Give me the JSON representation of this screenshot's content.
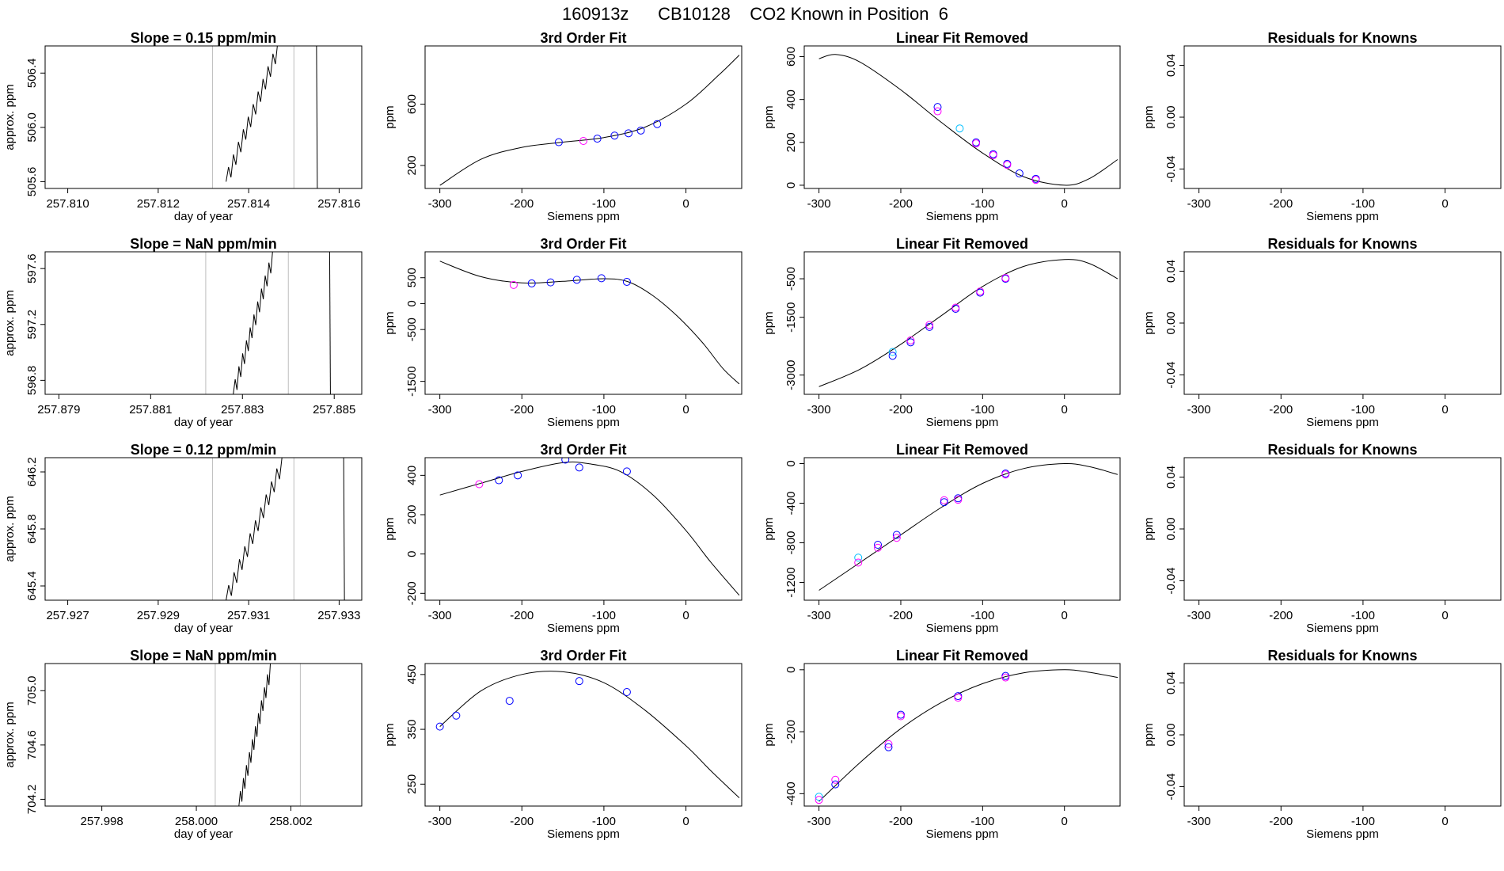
{
  "title": "160913z      CB10128    CO2 Known in Position  6",
  "colors": {
    "sample_blue": "#0000ff",
    "sample_magenta": "#ff00ff",
    "sample_cyan": "#00bfff",
    "guide_grey": "#bdbdbd",
    "ink": "#000000"
  },
  "chart_data": [
    {
      "row": 0,
      "type": "line",
      "title": "Slope =  0.15  ppm/min",
      "xlabel": "day of year",
      "ylabel": "approx. ppm",
      "xlim": [
        257.8095,
        257.8165
      ],
      "ylim": [
        505.55,
        506.6
      ],
      "xticks": [
        "257.810",
        "257.812",
        "257.814",
        "257.816"
      ],
      "xtick_values": [
        257.81,
        257.812,
        257.814,
        257.816
      ],
      "yticks": [
        "505.6",
        "506.0",
        "506.4"
      ],
      "ytick_values": [
        505.6,
        506.0,
        506.4
      ],
      "guide_lines": [
        257.8132,
        257.815
      ],
      "end_line": 257.8155,
      "trace": {
        "x_start": 257.8135,
        "x_end": 257.8147,
        "y_start": 505.6,
        "y_end": 506.62
      }
    },
    {
      "row": 0,
      "type": "scatter",
      "title": "3rd Order Fit",
      "xlabel": "Siemens ppm",
      "ylabel": "ppm",
      "xlim": [
        -318,
        68
      ],
      "ylim": [
        50,
        980
      ],
      "xticks": [
        "-300",
        "-200",
        "-100",
        "0"
      ],
      "xtick_values": [
        -300,
        -200,
        -100,
        0
      ],
      "yticks": [
        "200",
        "600"
      ],
      "ytick_values": [
        200,
        600
      ],
      "curve_points": [
        [
          -300,
          70
        ],
        [
          -250,
          240
        ],
        [
          -200,
          318
        ],
        [
          -150,
          352
        ],
        [
          -100,
          382
        ],
        [
          -50,
          450
        ],
        [
          0,
          600
        ],
        [
          40,
          790
        ],
        [
          65,
          920
        ]
      ],
      "points": [
        [
          -155,
          352,
          "blue"
        ],
        [
          -108,
          375,
          "blue"
        ],
        [
          -87,
          395,
          "blue"
        ],
        [
          -70,
          410,
          "blue"
        ],
        [
          -55,
          428,
          "blue"
        ],
        [
          -35,
          470,
          "blue"
        ],
        [
          -125,
          360,
          "magenta"
        ]
      ]
    },
    {
      "row": 0,
      "type": "scatter",
      "title": "Linear Fit Removed",
      "xlabel": "Siemens ppm",
      "ylabel": "ppm",
      "xlim": [
        -318,
        68
      ],
      "ylim": [
        -15,
        650
      ],
      "xticks": [
        "-300",
        "-200",
        "-100",
        "0"
      ],
      "xtick_values": [
        -300,
        -200,
        -100,
        0
      ],
      "yticks": [
        "0",
        "200",
        "400",
        "600"
      ],
      "ytick_values": [
        0,
        200,
        400,
        600
      ],
      "curve_points": [
        [
          -300,
          590
        ],
        [
          -280,
          610
        ],
        [
          -250,
          575
        ],
        [
          -200,
          445
        ],
        [
          -150,
          292
        ],
        [
          -100,
          150
        ],
        [
          -50,
          40
        ],
        [
          0,
          0
        ],
        [
          30,
          30
        ],
        [
          65,
          120
        ]
      ],
      "points": [
        [
          -155,
          365,
          "blue"
        ],
        [
          -155,
          345,
          "magenta"
        ],
        [
          -128,
          265,
          "cyan"
        ],
        [
          -108,
          200,
          "blue"
        ],
        [
          -108,
          195,
          "magenta"
        ],
        [
          -87,
          145,
          "blue"
        ],
        [
          -87,
          140,
          "magenta"
        ],
        [
          -70,
          100,
          "blue"
        ],
        [
          -70,
          95,
          "magenta"
        ],
        [
          -55,
          55,
          "blue"
        ],
        [
          -35,
          30,
          "blue"
        ],
        [
          -35,
          25,
          "magenta"
        ]
      ]
    },
    {
      "row": 0,
      "type": "scatter",
      "title": "Residuals for Knowns",
      "xlabel": "Siemens ppm",
      "ylabel": "ppm",
      "xlim": [
        -318,
        68
      ],
      "ylim": [
        -0.055,
        0.055
      ],
      "xticks": [
        "-300",
        "-200",
        "-100",
        "0"
      ],
      "xtick_values": [
        -300,
        -200,
        -100,
        0
      ],
      "yticks": [
        "-0.04",
        "0.00",
        "0.04"
      ],
      "ytick_values": [
        -0.04,
        0.0,
        0.04
      ],
      "curve_points": [],
      "points": []
    },
    {
      "row": 1,
      "type": "line",
      "title": "Slope =  NaN  ppm/min",
      "xlabel": "day of year",
      "ylabel": "approx. ppm",
      "xlim": [
        257.8787,
        257.8856
      ],
      "ylim": [
        596.7,
        597.72
      ],
      "xticks": [
        "257.879",
        "257.881",
        "257.883",
        "257.885"
      ],
      "xtick_values": [
        257.879,
        257.881,
        257.883,
        257.885
      ],
      "yticks": [
        "596.8",
        "597.2",
        "597.6"
      ],
      "ytick_values": [
        596.8,
        597.2,
        597.6
      ],
      "guide_lines": [
        257.8822,
        257.884
      ],
      "end_line": 257.8849,
      "trace": {
        "x_start": 257.8828,
        "x_end": 257.8837,
        "y_start": 596.7,
        "y_end": 597.72
      }
    },
    {
      "row": 1,
      "type": "scatter",
      "title": "3rd Order Fit",
      "xlabel": "Siemens ppm",
      "ylabel": "ppm",
      "xlim": [
        -318,
        68
      ],
      "ylim": [
        -1750,
        1000
      ],
      "xticks": [
        "-300",
        "-200",
        "-100",
        "0"
      ],
      "xtick_values": [
        -300,
        -200,
        -100,
        0
      ],
      "yticks": [
        "-1500",
        "-500",
        "0",
        "500"
      ],
      "ytick_values": [
        -1500,
        -500,
        0,
        500
      ],
      "curve_points": [
        [
          -300,
          820
        ],
        [
          -250,
          520
        ],
        [
          -200,
          400
        ],
        [
          -150,
          430
        ],
        [
          -100,
          480
        ],
        [
          -70,
          420
        ],
        [
          -40,
          150
        ],
        [
          -10,
          -250
        ],
        [
          20,
          -750
        ],
        [
          45,
          -1250
        ],
        [
          65,
          -1550
        ]
      ],
      "points": [
        [
          -210,
          360,
          "magenta"
        ],
        [
          -188,
          390,
          "blue"
        ],
        [
          -165,
          410,
          "blue"
        ],
        [
          -133,
          460,
          "blue"
        ],
        [
          -103,
          490,
          "blue"
        ],
        [
          -72,
          420,
          "blue"
        ]
      ]
    },
    {
      "row": 1,
      "type": "scatter",
      "title": "Linear Fit Removed",
      "xlabel": "Siemens ppm",
      "ylabel": "ppm",
      "xlim": [
        -318,
        68
      ],
      "ylim": [
        -3500,
        200
      ],
      "xticks": [
        "-300",
        "-200",
        "-100",
        "0"
      ],
      "xtick_values": [
        -300,
        -200,
        -100,
        0
      ],
      "yticks": [
        "-3000",
        "-1500",
        "-500"
      ],
      "ytick_values": [
        -3000,
        -1500,
        -500
      ],
      "curve_points": [
        [
          -300,
          -3300
        ],
        [
          -250,
          -2850
        ],
        [
          -200,
          -2200
        ],
        [
          -150,
          -1450
        ],
        [
          -100,
          -700
        ],
        [
          -50,
          -180
        ],
        [
          0,
          0
        ],
        [
          30,
          -100
        ],
        [
          65,
          -500
        ]
      ],
      "points": [
        [
          -210,
          -2400,
          "cyan"
        ],
        [
          -210,
          -2500,
          "blue"
        ],
        [
          -188,
          -2150,
          "blue"
        ],
        [
          -188,
          -2100,
          "magenta"
        ],
        [
          -165,
          -1750,
          "blue"
        ],
        [
          -165,
          -1700,
          "magenta"
        ],
        [
          -133,
          -1280,
          "blue"
        ],
        [
          -133,
          -1250,
          "magenta"
        ],
        [
          -103,
          -860,
          "blue"
        ],
        [
          -103,
          -830,
          "magenta"
        ],
        [
          -72,
          -500,
          "blue"
        ],
        [
          -72,
          -480,
          "magenta"
        ]
      ]
    },
    {
      "row": 1,
      "type": "scatter",
      "title": "Residuals for Knowns",
      "xlabel": "Siemens ppm",
      "ylabel": "ppm",
      "xlim": [
        -318,
        68
      ],
      "ylim": [
        -0.055,
        0.055
      ],
      "xticks": [
        "-300",
        "-200",
        "-100",
        "0"
      ],
      "xtick_values": [
        -300,
        -200,
        -100,
        0
      ],
      "yticks": [
        "-0.04",
        "0.00",
        "0.04"
      ],
      "ytick_values": [
        -0.04,
        0.0,
        0.04
      ],
      "curve_points": [],
      "points": []
    },
    {
      "row": 2,
      "type": "line",
      "title": "Slope =  0.12  ppm/min",
      "xlabel": "day of year",
      "ylabel": "approx. ppm",
      "xlim": [
        257.9265,
        257.9335
      ],
      "ylim": [
        645.3,
        646.3
      ],
      "xticks": [
        "257.927",
        "257.929",
        "257.931",
        "257.933"
      ],
      "xtick_values": [
        257.927,
        257.929,
        257.931,
        257.933
      ],
      "yticks": [
        "645.4",
        "645.8",
        "646.2"
      ],
      "ytick_values": [
        645.4,
        645.8,
        646.2
      ],
      "guide_lines": [
        257.9302,
        257.932
      ],
      "end_line": 257.9331,
      "trace": {
        "x_start": 257.9305,
        "x_end": 257.9318,
        "y_start": 645.3,
        "y_end": 646.3
      }
    },
    {
      "row": 2,
      "type": "scatter",
      "title": "3rd Order Fit",
      "xlabel": "Siemens ppm",
      "ylabel": "ppm",
      "xlim": [
        -318,
        68
      ],
      "ylim": [
        -235,
        490
      ],
      "xticks": [
        "-300",
        "-200",
        "-100",
        "0"
      ],
      "xtick_values": [
        -300,
        -200,
        -100,
        0
      ],
      "yticks": [
        "-200",
        "0",
        "200",
        "400"
      ],
      "ytick_values": [
        -200,
        0,
        200,
        400
      ],
      "curve_points": [
        [
          -300,
          300
        ],
        [
          -250,
          360
        ],
        [
          -200,
          420
        ],
        [
          -150,
          465
        ],
        [
          -120,
          460
        ],
        [
          -80,
          420
        ],
        [
          -40,
          300
        ],
        [
          0,
          120
        ],
        [
          30,
          -40
        ],
        [
          65,
          -210
        ]
      ],
      "points": [
        [
          -252,
          355,
          "magenta"
        ],
        [
          -228,
          375,
          "blue"
        ],
        [
          -205,
          400,
          "blue"
        ],
        [
          -147,
          480,
          "blue"
        ],
        [
          -130,
          440,
          "blue"
        ],
        [
          -72,
          420,
          "blue"
        ]
      ]
    },
    {
      "row": 2,
      "type": "scatter",
      "title": "Linear Fit Removed",
      "xlabel": "Siemens ppm",
      "ylabel": "ppm",
      "xlim": [
        -318,
        68
      ],
      "ylim": [
        -1380,
        60
      ],
      "xticks": [
        "-300",
        "-200",
        "-100",
        "0"
      ],
      "xtick_values": [
        -300,
        -200,
        -100,
        0
      ],
      "yticks": [
        "-1200",
        "-800",
        "-400",
        "0"
      ],
      "ytick_values": [
        -1200,
        -800,
        -400,
        0
      ],
      "curve_points": [
        [
          -300,
          -1280
        ],
        [
          -250,
          -1000
        ],
        [
          -200,
          -720
        ],
        [
          -150,
          -440
        ],
        [
          -100,
          -200
        ],
        [
          -50,
          -50
        ],
        [
          0,
          0
        ],
        [
          30,
          -30
        ],
        [
          65,
          -110
        ]
      ],
      "points": [
        [
          -252,
          -950,
          "cyan"
        ],
        [
          -252,
          -1000,
          "magenta"
        ],
        [
          -228,
          -820,
          "blue"
        ],
        [
          -228,
          -850,
          "magenta"
        ],
        [
          -205,
          -720,
          "blue"
        ],
        [
          -205,
          -750,
          "magenta"
        ],
        [
          -147,
          -370,
          "magenta"
        ],
        [
          -147,
          -390,
          "blue"
        ],
        [
          -130,
          -350,
          "blue"
        ],
        [
          -130,
          -365,
          "magenta"
        ],
        [
          -72,
          -100,
          "blue"
        ],
        [
          -72,
          -110,
          "magenta"
        ]
      ]
    },
    {
      "row": 2,
      "type": "scatter",
      "title": "Residuals for Knowns",
      "xlabel": "Siemens ppm",
      "ylabel": "ppm",
      "xlim": [
        -318,
        68
      ],
      "ylim": [
        -0.055,
        0.055
      ],
      "xticks": [
        "-300",
        "-200",
        "-100",
        "0"
      ],
      "xtick_values": [
        -300,
        -200,
        -100,
        0
      ],
      "yticks": [
        "-0.04",
        "0.00",
        "0.04"
      ],
      "ytick_values": [
        -0.04,
        0.0,
        0.04
      ],
      "curve_points": [],
      "points": []
    },
    {
      "row": 3,
      "type": "line",
      "title": "Slope =  NaN  ppm/min",
      "xlabel": "day of year",
      "ylabel": "approx. ppm",
      "xlim": [
        257.9968,
        258.0035
      ],
      "ylim": [
        704.15,
        705.2
      ],
      "xticks": [
        "257.998",
        "258.000",
        "258.002"
      ],
      "xtick_values": [
        257.998,
        258.0,
        258.002
      ],
      "yticks": [
        "704.2",
        "704.6",
        "705.0"
      ],
      "ytick_values": [
        704.2,
        704.6,
        705.0
      ],
      "guide_lines": [
        258.0004,
        258.0022
      ],
      "end_line": null,
      "trace": {
        "x_start": 258.0009,
        "x_end": 258.0016,
        "y_start": 704.15,
        "y_end": 705.2
      }
    },
    {
      "row": 3,
      "type": "scatter",
      "title": "3rd Order Fit",
      "xlabel": "Siemens ppm",
      "ylabel": "ppm",
      "xlim": [
        -318,
        68
      ],
      "ylim": [
        210,
        470
      ],
      "xticks": [
        "-300",
        "-200",
        "-100",
        "0"
      ],
      "xtick_values": [
        -300,
        -200,
        -100,
        0
      ],
      "yticks": [
        "250",
        "350",
        "450"
      ],
      "ytick_values": [
        250,
        350,
        450
      ],
      "curve_points": [
        [
          -300,
          355
        ],
        [
          -250,
          420
        ],
        [
          -200,
          450
        ],
        [
          -150,
          455
        ],
        [
          -100,
          435
        ],
        [
          -50,
          385
        ],
        [
          0,
          320
        ],
        [
          30,
          275
        ],
        [
          65,
          225
        ]
      ],
      "points": [
        [
          -300,
          355,
          "blue"
        ],
        [
          -280,
          375,
          "blue"
        ],
        [
          -215,
          402,
          "blue"
        ],
        [
          -130,
          438,
          "blue"
        ],
        [
          -72,
          418,
          "blue"
        ]
      ]
    },
    {
      "row": 3,
      "type": "scatter",
      "title": "Linear Fit Removed",
      "xlabel": "Siemens ppm",
      "ylabel": "ppm",
      "xlim": [
        -318,
        68
      ],
      "ylim": [
        -440,
        20
      ],
      "xticks": [
        "-300",
        "-200",
        "-100",
        "0"
      ],
      "xtick_values": [
        -300,
        -200,
        -100,
        0
      ],
      "yticks": [
        "-400",
        "-200",
        "0"
      ],
      "ytick_values": [
        -400,
        -200,
        0
      ],
      "curve_points": [
        [
          -300,
          -425
        ],
        [
          -250,
          -300
        ],
        [
          -200,
          -190
        ],
        [
          -150,
          -105
        ],
        [
          -100,
          -45
        ],
        [
          -50,
          -10
        ],
        [
          0,
          0
        ],
        [
          30,
          -8
        ],
        [
          65,
          -25
        ]
      ],
      "points": [
        [
          -300,
          -410,
          "cyan"
        ],
        [
          -300,
          -420,
          "magenta"
        ],
        [
          -280,
          -355,
          "magenta"
        ],
        [
          -280,
          -370,
          "blue"
        ],
        [
          -215,
          -240,
          "magenta"
        ],
        [
          -215,
          -250,
          "blue"
        ],
        [
          -200,
          -145,
          "blue"
        ],
        [
          -200,
          -150,
          "magenta"
        ],
        [
          -130,
          -85,
          "blue"
        ],
        [
          -130,
          -90,
          "magenta"
        ],
        [
          -72,
          -20,
          "blue"
        ],
        [
          -72,
          -25,
          "magenta"
        ]
      ]
    },
    {
      "row": 3,
      "type": "scatter",
      "title": "Residuals for Knowns",
      "xlabel": "Siemens ppm",
      "ylabel": "ppm",
      "xlim": [
        -318,
        68
      ],
      "ylim": [
        -0.055,
        0.055
      ],
      "xticks": [
        "-300",
        "-200",
        "-100",
        "0"
      ],
      "xtick_values": [
        -300,
        -200,
        -100,
        0
      ],
      "yticks": [
        "-0.04",
        "0.00",
        "0.04"
      ],
      "ytick_values": [
        -0.04,
        0.0,
        0.04
      ],
      "curve_points": [],
      "points": []
    }
  ]
}
